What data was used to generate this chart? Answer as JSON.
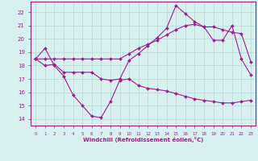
{
  "line1_x": [
    0,
    1,
    2,
    3,
    4,
    5,
    6,
    7,
    8,
    9,
    10,
    11,
    12,
    13,
    14,
    15,
    16,
    17,
    18,
    19,
    20,
    21,
    22,
    23
  ],
  "line1_y": [
    18.5,
    19.3,
    18.0,
    17.2,
    15.8,
    15.0,
    14.2,
    14.1,
    15.3,
    16.9,
    17.0,
    16.5,
    16.3,
    16.2,
    16.1,
    15.9,
    15.7,
    15.5,
    15.4,
    15.3,
    15.2,
    15.2,
    15.3,
    15.4
  ],
  "line2_x": [
    0,
    1,
    2,
    3,
    4,
    5,
    6,
    7,
    8,
    9,
    10,
    11,
    12,
    13,
    14,
    15,
    16,
    17,
    18,
    19,
    20,
    21,
    22,
    23
  ],
  "line2_y": [
    18.5,
    18.5,
    18.5,
    18.5,
    18.5,
    18.5,
    18.5,
    18.5,
    18.5,
    18.5,
    18.9,
    19.3,
    19.6,
    19.9,
    20.3,
    20.7,
    21.0,
    21.1,
    20.9,
    20.9,
    20.7,
    20.5,
    20.4,
    18.3
  ],
  "line3_x": [
    0,
    1,
    2,
    3,
    4,
    5,
    6,
    7,
    8,
    9,
    10,
    11,
    12,
    13,
    14,
    15,
    16,
    17,
    18,
    19,
    20,
    21,
    22,
    23
  ],
  "line3_y": [
    18.5,
    18.0,
    18.1,
    17.5,
    17.5,
    17.5,
    17.5,
    17.0,
    16.9,
    17.0,
    18.4,
    18.9,
    19.5,
    20.1,
    20.8,
    22.5,
    21.9,
    21.3,
    20.9,
    19.9,
    19.9,
    21.0,
    18.5,
    17.3
  ],
  "line_color": "#9b1d8a",
  "bg_color": "#d8f0f0",
  "grid_color": "#b0d8d8",
  "xlabel": "Windchill (Refroidissement éolien,°C)",
  "xlim": [
    -0.5,
    23.5
  ],
  "ylim": [
    13.5,
    22.8
  ],
  "yticks": [
    14,
    15,
    16,
    17,
    18,
    19,
    20,
    21,
    22
  ],
  "xticks": [
    0,
    1,
    2,
    3,
    4,
    5,
    6,
    7,
    8,
    9,
    10,
    11,
    12,
    13,
    14,
    15,
    16,
    17,
    18,
    19,
    20,
    21,
    22,
    23
  ]
}
